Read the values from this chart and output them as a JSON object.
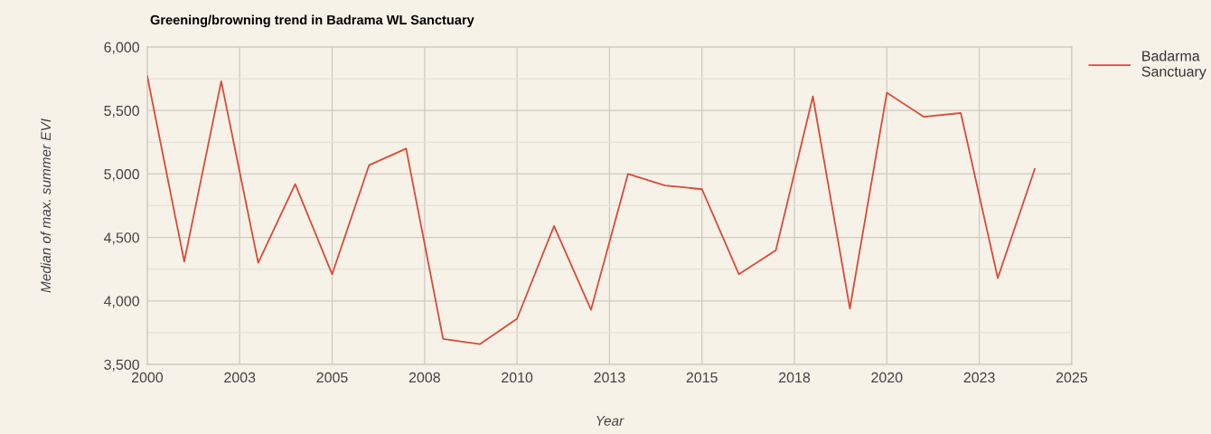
{
  "chart_data": {
    "type": "line",
    "title": "Greening/browning trend in Badrama WL Sanctuary",
    "xlabel": "Year",
    "ylabel": "Median of max. summer EVI",
    "x": [
      2000,
      2001,
      2002,
      2003,
      2004,
      2005,
      2006,
      2007,
      2008,
      2009,
      2010,
      2011,
      2012,
      2013,
      2014,
      2015,
      2016,
      2017,
      2018,
      2019,
      2020,
      2021,
      2022,
      2023,
      2024
    ],
    "series": [
      {
        "name": "Badarma\nSanctuary",
        "color": "#dc4a38",
        "values": [
          5770,
          4310,
          5730,
          4300,
          4920,
          4210,
          5070,
          5200,
          3700,
          3660,
          3860,
          4590,
          3930,
          5000,
          4910,
          4880,
          4210,
          4400,
          5610,
          3940,
          5640,
          5450,
          5480,
          4180,
          5040
        ]
      }
    ],
    "xlim": [
      2000,
      2025
    ],
    "ylim": [
      3500,
      6000
    ],
    "xticks": [
      2000,
      {
        "value": 2002.5,
        "label": "2003"
      },
      2005,
      {
        "value": 2007.5,
        "label": "2008"
      },
      2010,
      {
        "value": 2012.5,
        "label": "2013"
      },
      2015,
      {
        "value": 2017.5,
        "label": "2018"
      },
      2020,
      {
        "value": 2022.5,
        "label": "2023"
      },
      2025
    ],
    "yticks": [
      {
        "value": 3500,
        "label": "3,500"
      },
      {
        "value": 3750,
        "label": null
      },
      {
        "value": 4000,
        "label": "4,000"
      },
      {
        "value": 4250,
        "label": null
      },
      {
        "value": 4500,
        "label": "4,500"
      },
      {
        "value": 4750,
        "label": null
      },
      {
        "value": 5000,
        "label": "5,000"
      },
      {
        "value": 5250,
        "label": null
      },
      {
        "value": 5500,
        "label": "5,500"
      },
      {
        "value": 5750,
        "label": null
      },
      {
        "value": 6000,
        "label": "6,000"
      }
    ],
    "grid": true,
    "legend": "top right",
    "marker": "none",
    "line_style": "solid"
  }
}
